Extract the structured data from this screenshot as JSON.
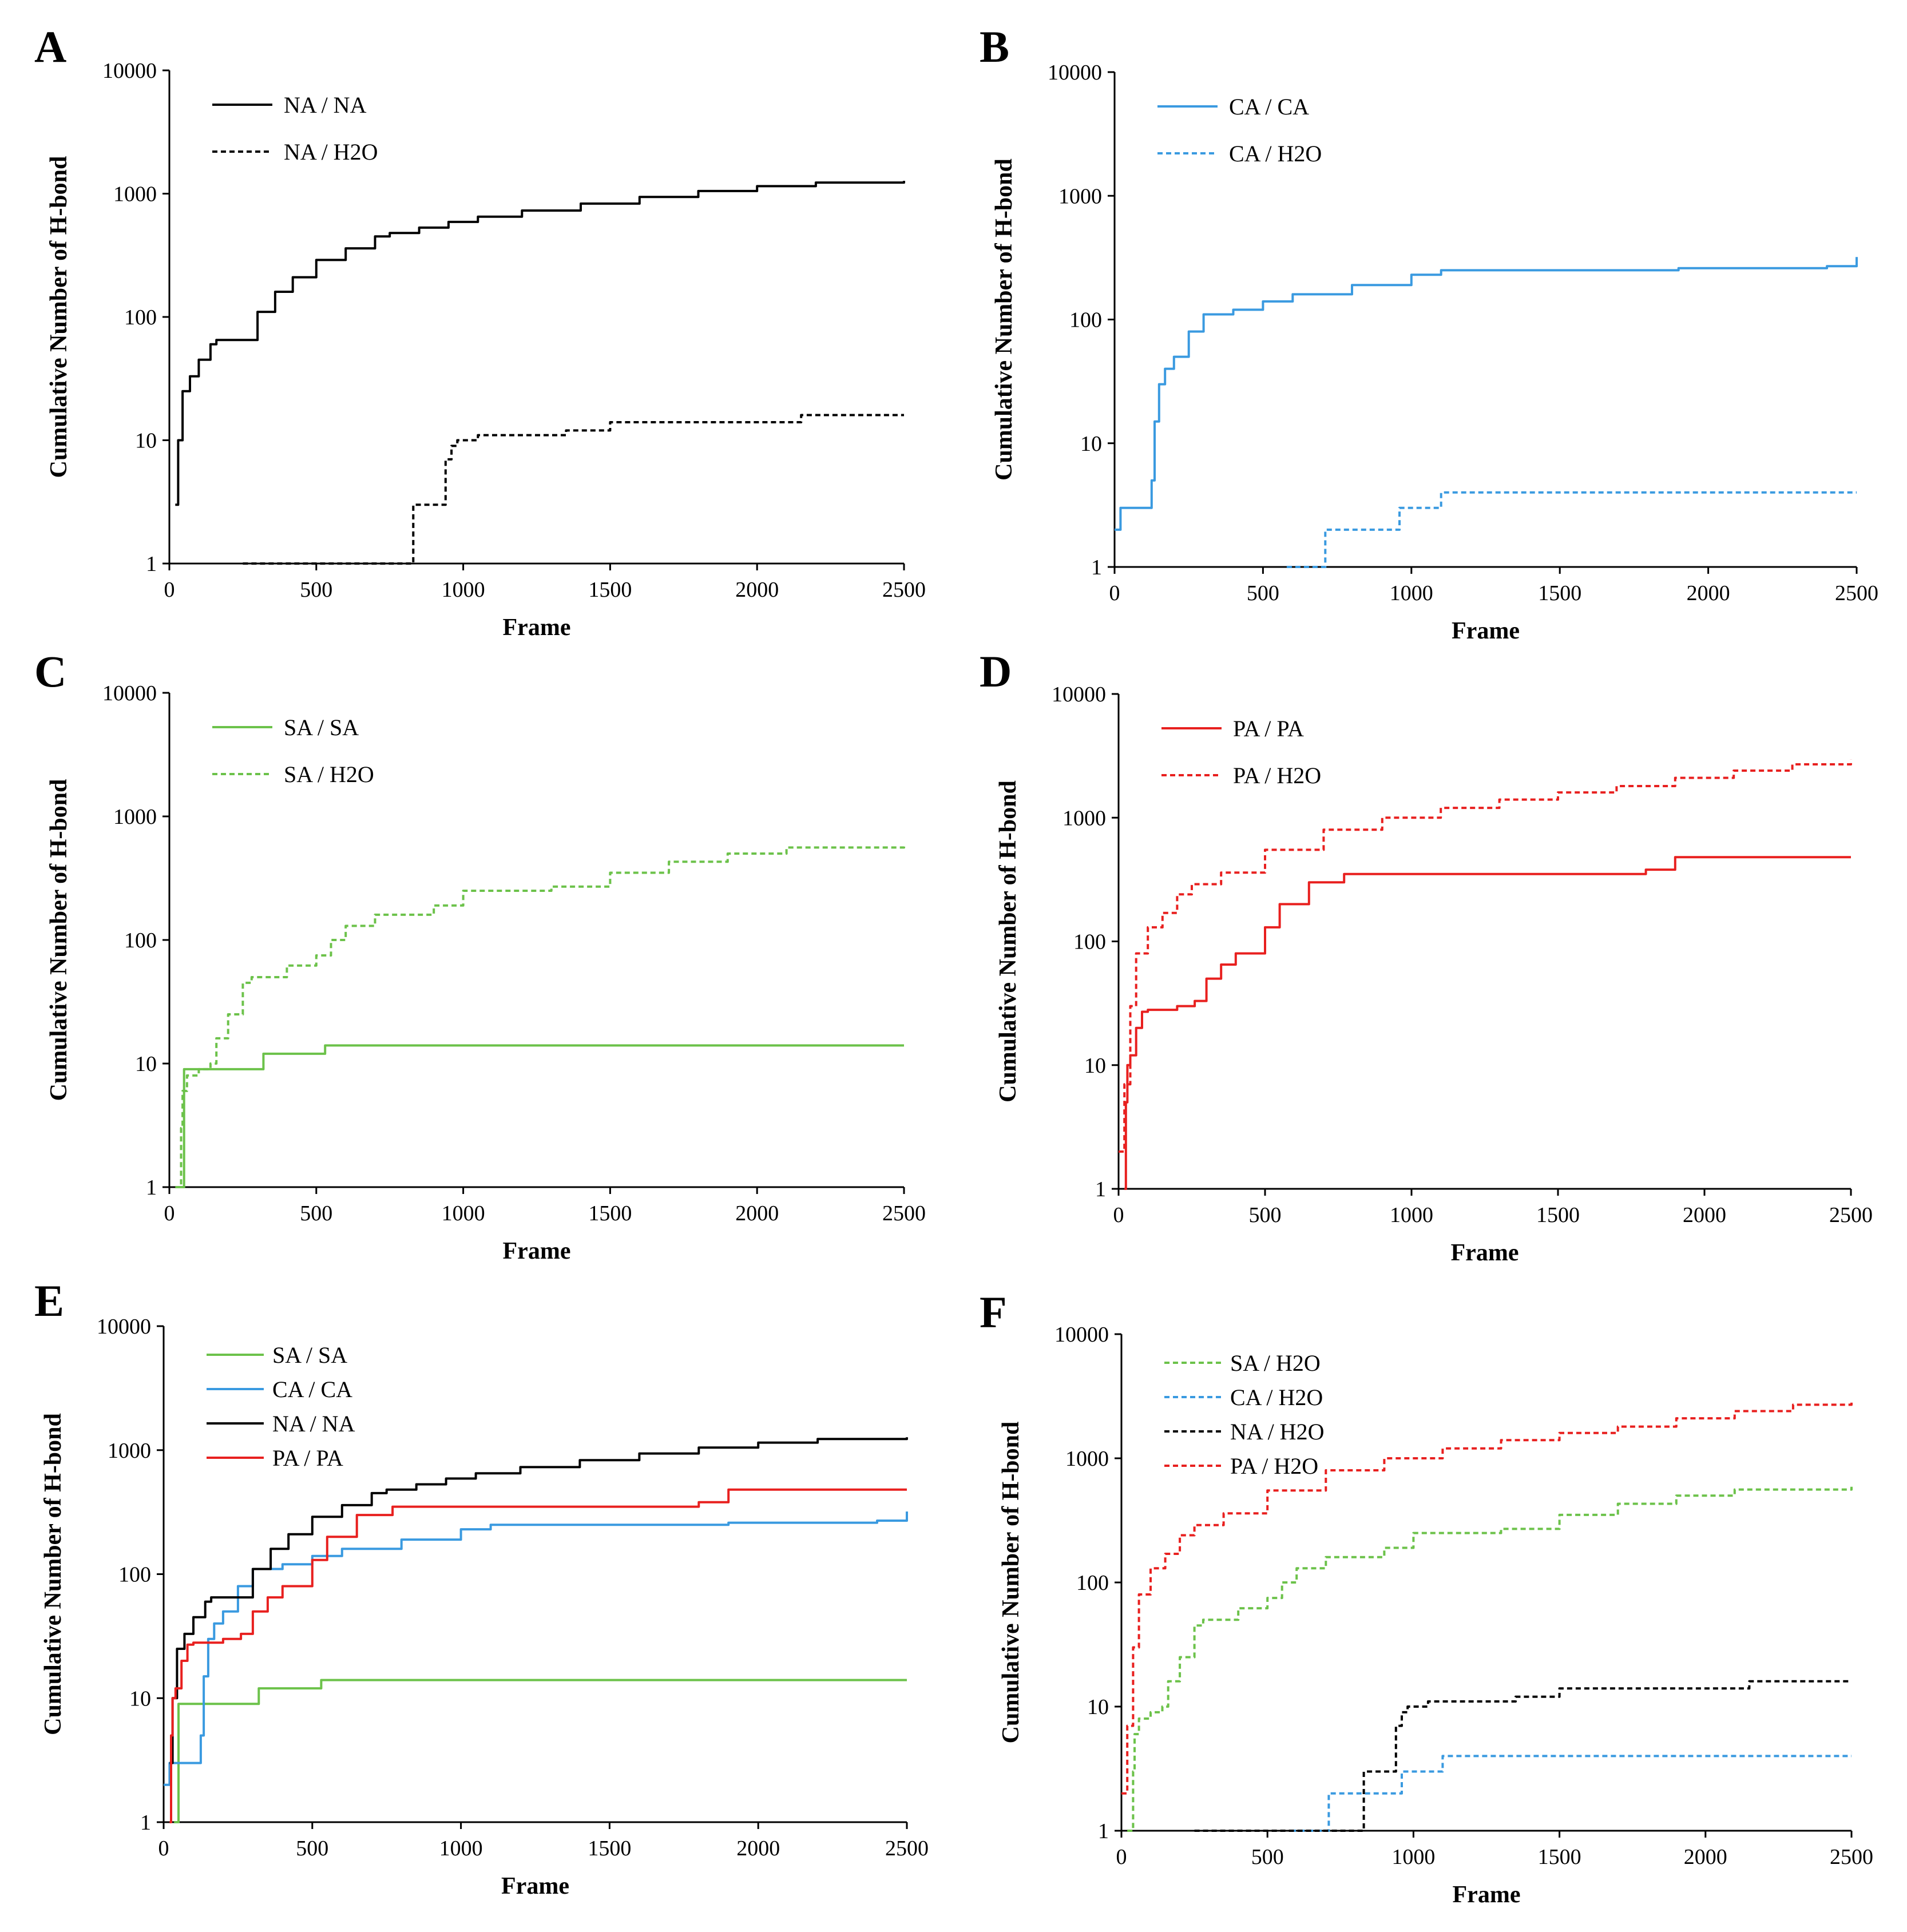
{
  "chart_data": [
    {
      "panel": "A",
      "type": "line",
      "title": "",
      "xlabel": "Frame",
      "ylabel": "Cumulative Number of H-bond",
      "xlim": [
        0,
        2500
      ],
      "ylim": [
        1,
        10000
      ],
      "yscale": "log",
      "xticks": [
        0,
        500,
        1000,
        1500,
        2000,
        2500
      ],
      "yticks": [
        1,
        10,
        100,
        1000,
        10000
      ],
      "xtick_labels": [
        "0",
        "500",
        "1000",
        "1500",
        "2000",
        "2500"
      ],
      "ytick_labels": [
        "1",
        "10",
        "100",
        "1000",
        "10000"
      ],
      "legend": "top-left",
      "series": [
        {
          "name": "NA / NA",
          "color": "#000000",
          "dash": "solid",
          "x": [
            20,
            30,
            45,
            70,
            100,
            140,
            160,
            230,
            300,
            360,
            420,
            500,
            600,
            700,
            750,
            850,
            950,
            1050,
            1200,
            1400,
            1600,
            1800,
            2000,
            2200,
            2500
          ],
          "y": [
            3,
            10,
            25,
            33,
            45,
            60,
            65,
            65,
            110,
            160,
            210,
            290,
            360,
            450,
            480,
            530,
            590,
            650,
            730,
            830,
            940,
            1050,
            1150,
            1230,
            1270
          ]
        },
        {
          "name": "NA / H2O",
          "color": "#000000",
          "dash": "dashed",
          "x": [
            250,
            830,
            830,
            940,
            940,
            960,
            980,
            1050,
            1300,
            1350,
            1500,
            1800,
            2100,
            2150,
            2500
          ],
          "y": [
            1,
            1,
            3,
            3,
            7,
            9,
            10,
            11,
            11,
            12,
            14,
            14,
            14,
            16,
            16
          ]
        }
      ]
    },
    {
      "panel": "B",
      "type": "line",
      "title": "",
      "xlabel": "Frame",
      "ylabel": "Cumulative Number of H-bond",
      "xlim": [
        0,
        2500
      ],
      "ylim": [
        1,
        10000
      ],
      "yscale": "log",
      "xticks": [
        0,
        500,
        1000,
        1500,
        2000,
        2500
      ],
      "yticks": [
        1,
        10,
        100,
        1000,
        10000
      ],
      "xtick_labels": [
        "0",
        "500",
        "1000",
        "1500",
        "2000",
        "2500"
      ],
      "ytick_labels": [
        "1",
        "10",
        "100",
        "1000",
        "10000"
      ],
      "legend": "top-left",
      "series": [
        {
          "name": "CA / CA",
          "color": "#3a9ae0",
          "dash": "solid",
          "x": [
            0,
            20,
            20,
            120,
            125,
            135,
            150,
            170,
            200,
            250,
            300,
            400,
            500,
            600,
            800,
            1000,
            1100,
            1500,
            1900,
            2400,
            2500
          ],
          "y": [
            2,
            2,
            3,
            3,
            5,
            15,
            30,
            40,
            50,
            80,
            110,
            120,
            140,
            160,
            190,
            230,
            250,
            250,
            260,
            270,
            320
          ]
        },
        {
          "name": "CA / H2O",
          "color": "#3a9ae0",
          "dash": "dashed",
          "x": [
            580,
            710,
            710,
            960,
            960,
            1100,
            1100,
            2500
          ],
          "y": [
            1,
            1,
            2,
            2,
            3,
            3,
            4,
            4
          ]
        }
      ]
    },
    {
      "panel": "C",
      "type": "line",
      "title": "",
      "xlabel": "Frame",
      "ylabel": "Cumulative Number of H-bond",
      "xlim": [
        0,
        2500
      ],
      "ylim": [
        1,
        10000
      ],
      "yscale": "log",
      "xticks": [
        0,
        500,
        1000,
        1500,
        2000,
        2500
      ],
      "yticks": [
        1,
        10,
        100,
        1000,
        10000
      ],
      "xtick_labels": [
        "0",
        "500",
        "1000",
        "1500",
        "2000",
        "2500"
      ],
      "ytick_labels": [
        "1",
        "10",
        "100",
        "1000",
        "10000"
      ],
      "legend": "top-left",
      "series": [
        {
          "name": "SA / SA",
          "color": "#6cc24a",
          "dash": "solid",
          "x": [
            35,
            50,
            50,
            320,
            320,
            530,
            530,
            2500
          ],
          "y": [
            1,
            1,
            9,
            9,
            12,
            12,
            14,
            14
          ]
        },
        {
          "name": "SA / H2O",
          "color": "#6cc24a",
          "dash": "dashed",
          "x": [
            20,
            40,
            45,
            60,
            100,
            140,
            160,
            200,
            250,
            280,
            400,
            500,
            550,
            600,
            700,
            900,
            1000,
            1100,
            1300,
            1500,
            1700,
            1900,
            2100,
            2500
          ],
          "y": [
            1,
            3,
            6,
            8,
            9,
            10,
            16,
            25,
            45,
            50,
            62,
            75,
            100,
            130,
            160,
            190,
            250,
            250,
            270,
            350,
            430,
            500,
            560,
            590
          ]
        }
      ]
    },
    {
      "panel": "D",
      "type": "line",
      "title": "",
      "xlabel": "Frame",
      "ylabel": "Cumulative Number of H-bond",
      "xlim": [
        0,
        2500
      ],
      "ylim": [
        1,
        10000
      ],
      "yscale": "log",
      "xticks": [
        0,
        500,
        1000,
        1500,
        2000,
        2500
      ],
      "yticks": [
        1,
        10,
        100,
        1000,
        10000
      ],
      "xtick_labels": [
        "0",
        "500",
        "1000",
        "1500",
        "2000",
        "2500"
      ],
      "ytick_labels": [
        "1",
        "10",
        "100",
        "1000",
        "10000"
      ],
      "legend": "top-left",
      "series": [
        {
          "name": "PA / PA",
          "color": "#e8201f",
          "dash": "solid",
          "x": [
            20,
            25,
            30,
            40,
            60,
            80,
            100,
            200,
            260,
            300,
            350,
            400,
            500,
            550,
            650,
            770,
            1000,
            1500,
            1700,
            1800,
            1900,
            2500
          ],
          "y": [
            1,
            5,
            10,
            12,
            20,
            27,
            28,
            30,
            33,
            50,
            65,
            80,
            130,
            200,
            300,
            350,
            350,
            350,
            350,
            380,
            480,
            480
          ]
        },
        {
          "name": "PA / H2O",
          "color": "#e8201f",
          "dash": "dashed",
          "x": [
            0,
            20,
            40,
            60,
            100,
            150,
            200,
            250,
            350,
            500,
            700,
            900,
            1100,
            1300,
            1500,
            1700,
            1900,
            2100,
            2300,
            2500
          ],
          "y": [
            2,
            7,
            30,
            80,
            130,
            170,
            240,
            290,
            360,
            550,
            800,
            1000,
            1200,
            1400,
            1600,
            1800,
            2100,
            2400,
            2700,
            2950
          ]
        }
      ]
    },
    {
      "panel": "E",
      "type": "line",
      "title": "",
      "xlabel": "Frame",
      "ylabel": "Cumulative Number of H-bond",
      "xlim": [
        0,
        2500
      ],
      "ylim": [
        1,
        10000
      ],
      "yscale": "log",
      "xticks": [
        0,
        500,
        1000,
        1500,
        2000,
        2500
      ],
      "yticks": [
        1,
        10,
        100,
        1000,
        10000
      ],
      "xtick_labels": [
        "0",
        "500",
        "1000",
        "1500",
        "2000",
        "2500"
      ],
      "ytick_labels": [
        "1",
        "10",
        "100",
        "1000",
        "10000"
      ],
      "legend": "top-left",
      "series": [
        {
          "name": "SA / SA",
          "color": "#6cc24a",
          "dash": "solid",
          "x": [
            35,
            50,
            50,
            320,
            320,
            530,
            530,
            2500
          ],
          "y": [
            1,
            1,
            9,
            9,
            12,
            12,
            14,
            14
          ]
        },
        {
          "name": "CA / CA",
          "color": "#3a9ae0",
          "dash": "solid",
          "x": [
            0,
            20,
            20,
            120,
            125,
            135,
            150,
            170,
            200,
            250,
            300,
            400,
            500,
            600,
            800,
            1000,
            1100,
            1500,
            1900,
            2400,
            2500
          ],
          "y": [
            2,
            2,
            3,
            3,
            5,
            15,
            30,
            40,
            50,
            80,
            110,
            120,
            140,
            160,
            190,
            230,
            250,
            250,
            260,
            270,
            320
          ]
        },
        {
          "name": "NA / NA",
          "color": "#000000",
          "dash": "solid",
          "x": [
            20,
            30,
            45,
            70,
            100,
            140,
            160,
            230,
            300,
            360,
            420,
            500,
            600,
            700,
            750,
            850,
            950,
            1050,
            1200,
            1400,
            1600,
            1800,
            2000,
            2200,
            2500
          ],
          "y": [
            3,
            10,
            25,
            33,
            45,
            60,
            65,
            65,
            110,
            160,
            210,
            290,
            360,
            450,
            480,
            530,
            590,
            650,
            730,
            830,
            940,
            1050,
            1150,
            1230,
            1270
          ]
        },
        {
          "name": "PA / PA",
          "color": "#e8201f",
          "dash": "solid",
          "x": [
            20,
            25,
            30,
            40,
            60,
            80,
            100,
            200,
            260,
            300,
            350,
            400,
            500,
            550,
            650,
            770,
            1000,
            1500,
            1700,
            1800,
            1900,
            2500
          ],
          "y": [
            1,
            5,
            10,
            12,
            20,
            27,
            28,
            30,
            33,
            50,
            65,
            80,
            130,
            200,
            300,
            350,
            350,
            350,
            350,
            380,
            480,
            480
          ]
        }
      ]
    },
    {
      "panel": "F",
      "type": "line",
      "title": "",
      "xlabel": "Frame",
      "ylabel": "Cumulative Number of H-bond",
      "xlim": [
        0,
        2500
      ],
      "ylim": [
        1,
        10000
      ],
      "yscale": "log",
      "xticks": [
        0,
        500,
        1000,
        1500,
        2000,
        2500
      ],
      "yticks": [
        1,
        10,
        100,
        1000,
        10000
      ],
      "xtick_labels": [
        "0",
        "500",
        "1000",
        "1500",
        "2000",
        "2500"
      ],
      "ytick_labels": [
        "1",
        "10",
        "100",
        "1000",
        "10000"
      ],
      "legend": "top-left",
      "series": [
        {
          "name": "SA / H2O",
          "color": "#6cc24a",
          "dash": "dashed",
          "x": [
            20,
            40,
            45,
            60,
            100,
            140,
            160,
            200,
            250,
            280,
            400,
            500,
            550,
            600,
            700,
            900,
            1000,
            1100,
            1300,
            1500,
            1700,
            1900,
            2100,
            2500
          ],
          "y": [
            1,
            3,
            6,
            8,
            9,
            10,
            16,
            25,
            45,
            50,
            62,
            75,
            100,
            130,
            160,
            190,
            250,
            250,
            270,
            350,
            430,
            500,
            560,
            590
          ]
        },
        {
          "name": "CA / H2O",
          "color": "#3a9ae0",
          "dash": "dashed",
          "x": [
            580,
            710,
            710,
            960,
            960,
            1100,
            1100,
            2500
          ],
          "y": [
            1,
            1,
            2,
            2,
            3,
            3,
            4,
            4
          ]
        },
        {
          "name": "NA / H2O",
          "color": "#000000",
          "dash": "dashed",
          "x": [
            250,
            830,
            830,
            940,
            940,
            960,
            980,
            1050,
            1300,
            1350,
            1500,
            1800,
            2100,
            2150,
            2500
          ],
          "y": [
            1,
            1,
            3,
            3,
            7,
            9,
            10,
            11,
            11,
            12,
            14,
            14,
            14,
            16,
            16
          ]
        },
        {
          "name": "PA / H2O",
          "color": "#e8201f",
          "dash": "dashed",
          "x": [
            0,
            20,
            40,
            60,
            100,
            150,
            200,
            250,
            350,
            500,
            700,
            900,
            1100,
            1300,
            1500,
            1700,
            1900,
            2100,
            2300,
            2500
          ],
          "y": [
            2,
            7,
            30,
            80,
            130,
            170,
            240,
            290,
            360,
            550,
            800,
            1000,
            1200,
            1400,
            1600,
            1800,
            2100,
            2400,
            2700,
            2950
          ]
        }
      ]
    }
  ]
}
